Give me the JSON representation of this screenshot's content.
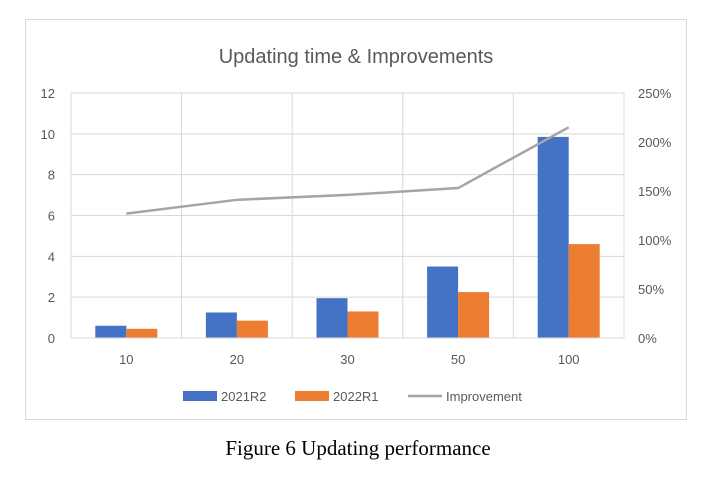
{
  "caption": "Figure 6 Updating performance",
  "chart_data": {
    "type": "bar",
    "title": "Updating time & Improvements",
    "categories": [
      "10",
      "20",
      "30",
      "50",
      "100"
    ],
    "series": [
      {
        "name": "2021R2",
        "type": "bar",
        "axis": "left",
        "values": [
          0.6,
          1.25,
          1.95,
          3.5,
          9.85
        ]
      },
      {
        "name": "2022R1",
        "type": "bar",
        "axis": "left",
        "values": [
          0.45,
          0.85,
          1.3,
          2.25,
          4.6
        ]
      },
      {
        "name": "Improvement",
        "type": "line",
        "axis": "right",
        "values": [
          1.27,
          1.41,
          1.46,
          1.53,
          2.15
        ]
      }
    ],
    "y_left": {
      "min": 0,
      "max": 12,
      "ticks": [
        "0",
        "2",
        "4",
        "6",
        "8",
        "10",
        "12"
      ]
    },
    "y_right": {
      "min": 0,
      "max": 2.5,
      "ticks": [
        "0%",
        "50%",
        "100%",
        "150%",
        "200%",
        "250%"
      ]
    },
    "grid": true,
    "legend_position": "bottom",
    "colors": {
      "2021R2": "#4472c4",
      "2022R1": "#ed7d31",
      "Improvement": "#a5a5a5",
      "grid": "#d9d9d9",
      "text": "#595959"
    }
  }
}
